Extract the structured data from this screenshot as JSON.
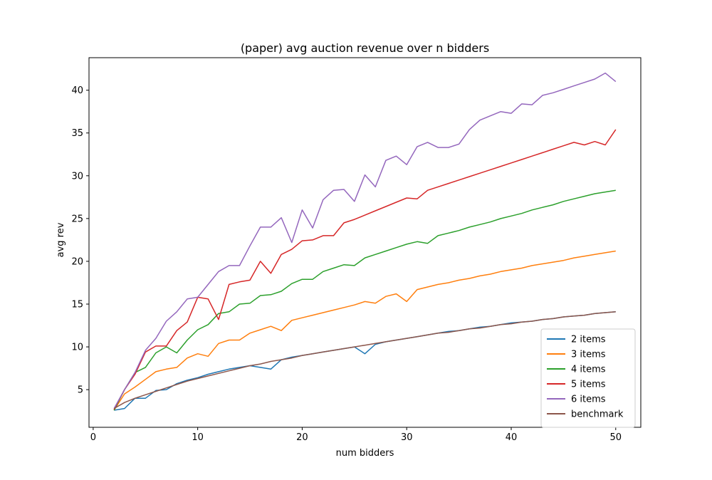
{
  "chart_data": {
    "type": "line",
    "title": "(paper) avg auction revenue over n bidders",
    "xlabel": "num bidders",
    "ylabel": "avg rev",
    "xlim": [
      -0.4,
      52.4
    ],
    "ylim": [
      0.6,
      43.8
    ],
    "xticks": [
      0,
      10,
      20,
      30,
      40,
      50
    ],
    "yticks": [
      5,
      10,
      15,
      20,
      25,
      30,
      35,
      40
    ],
    "grid": false,
    "legend_position": "lower-right",
    "x": [
      2,
      3,
      4,
      5,
      6,
      7,
      8,
      9,
      10,
      11,
      12,
      13,
      14,
      15,
      16,
      17,
      18,
      19,
      20,
      21,
      22,
      23,
      24,
      25,
      26,
      27,
      28,
      29,
      30,
      31,
      32,
      33,
      34,
      35,
      36,
      37,
      38,
      39,
      40,
      41,
      42,
      43,
      44,
      45,
      46,
      47,
      48,
      49,
      50
    ],
    "series": [
      {
        "name": "2 items",
        "color": "#1f77b4",
        "values": [
          2.6,
          2.8,
          4.0,
          4.0,
          4.9,
          5.0,
          5.7,
          6.1,
          6.4,
          6.8,
          7.1,
          7.4,
          7.6,
          7.8,
          7.6,
          7.4,
          8.5,
          8.8,
          9.0,
          9.2,
          9.4,
          9.6,
          9.8,
          10.0,
          9.2,
          10.3,
          10.6,
          10.8,
          11.0,
          11.2,
          11.4,
          11.6,
          11.8,
          11.9,
          12.1,
          12.3,
          12.4,
          12.6,
          12.8,
          12.9,
          13.0,
          13.2,
          13.3,
          13.5,
          13.6,
          13.7,
          13.9,
          14.0,
          14.1
        ]
      },
      {
        "name": "3 items",
        "color": "#ff7f0e",
        "values": [
          2.6,
          4.5,
          5.3,
          6.2,
          7.1,
          7.4,
          7.6,
          8.7,
          9.2,
          8.9,
          10.4,
          10.8,
          10.8,
          11.6,
          12.0,
          12.4,
          11.9,
          13.1,
          13.4,
          13.7,
          14.0,
          14.3,
          14.6,
          14.9,
          15.3,
          15.1,
          15.9,
          16.2,
          15.3,
          16.7,
          17.0,
          17.3,
          17.5,
          17.8,
          18.0,
          18.3,
          18.5,
          18.8,
          19.0,
          19.2,
          19.5,
          19.7,
          19.9,
          20.1,
          20.4,
          20.6,
          20.8,
          21.0,
          21.2
        ]
      },
      {
        "name": "4 items",
        "color": "#2ca02c",
        "values": [
          2.6,
          5.0,
          7.0,
          7.6,
          9.3,
          10.0,
          9.3,
          10.8,
          12.0,
          12.6,
          13.9,
          14.1,
          15.0,
          15.1,
          16.0,
          16.1,
          16.5,
          17.4,
          17.9,
          17.9,
          18.8,
          19.2,
          19.6,
          19.5,
          20.4,
          20.8,
          21.2,
          21.6,
          22.0,
          22.3,
          22.1,
          23.0,
          23.3,
          23.6,
          24.0,
          24.3,
          24.6,
          25.0,
          25.3,
          25.6,
          26.0,
          26.3,
          26.6,
          27.0,
          27.3,
          27.6,
          27.9,
          28.1,
          28.3
        ]
      },
      {
        "name": "5 items",
        "color": "#d62728",
        "values": [
          2.7,
          5.0,
          6.8,
          9.4,
          10.1,
          10.1,
          11.9,
          12.9,
          15.8,
          15.6,
          13.2,
          17.3,
          17.6,
          17.8,
          20.0,
          18.6,
          20.8,
          21.4,
          22.4,
          22.5,
          23.0,
          23.0,
          24.5,
          24.9,
          25.4,
          25.9,
          26.4,
          26.9,
          27.4,
          27.3,
          28.3,
          28.7,
          29.1,
          29.5,
          29.9,
          30.3,
          30.7,
          31.1,
          31.5,
          31.9,
          32.3,
          32.7,
          33.1,
          33.5,
          33.9,
          33.6,
          34.0,
          33.6,
          35.4
        ]
      },
      {
        "name": "6 items",
        "color": "#9467bd",
        "values": [
          2.8,
          5.0,
          7.0,
          9.6,
          11.0,
          13.0,
          14.1,
          15.6,
          15.8,
          17.3,
          18.8,
          19.5,
          19.5,
          21.8,
          24.0,
          24.0,
          25.1,
          22.2,
          26.0,
          23.9,
          27.2,
          28.3,
          28.4,
          27.0,
          30.1,
          28.7,
          31.8,
          32.3,
          31.3,
          33.4,
          33.9,
          33.3,
          33.3,
          33.7,
          35.4,
          36.5,
          37.0,
          37.5,
          37.3,
          38.4,
          38.3,
          39.4,
          39.7,
          40.1,
          40.5,
          40.9,
          41.3,
          42.0,
          41.0
        ]
      },
      {
        "name": "benchmark",
        "color": "#8c564b",
        "values": [
          2.8,
          3.5,
          4.0,
          4.4,
          4.8,
          5.2,
          5.6,
          6.0,
          6.3,
          6.6,
          6.9,
          7.2,
          7.5,
          7.8,
          8.0,
          8.3,
          8.5,
          8.7,
          9.0,
          9.2,
          9.4,
          9.6,
          9.8,
          10.0,
          10.2,
          10.4,
          10.6,
          10.8,
          11.0,
          11.2,
          11.4,
          11.6,
          11.7,
          11.9,
          12.1,
          12.2,
          12.4,
          12.6,
          12.7,
          12.9,
          13.0,
          13.2,
          13.3,
          13.5,
          13.6,
          13.7,
          13.9,
          14.0,
          14.1
        ]
      }
    ]
  }
}
